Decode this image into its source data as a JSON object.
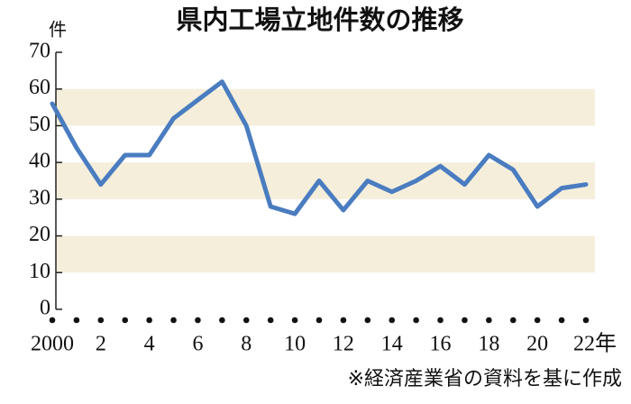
{
  "chart_data": {
    "type": "line",
    "title": "県内工場立地件数の推移",
    "y_unit": "件",
    "source": "※経済産業省の資料を基に作成",
    "categories": [
      "2000",
      null,
      "2",
      null,
      "4",
      null,
      "6",
      null,
      "8",
      null,
      "10",
      null,
      "12",
      null,
      "14",
      null,
      "16",
      null,
      "18",
      null,
      "20",
      null,
      "22年"
    ],
    "values": [
      56,
      44,
      34,
      42,
      42,
      52,
      57,
      62,
      50,
      28,
      26,
      35,
      27,
      35,
      32,
      35,
      39,
      34,
      42,
      38,
      28,
      33,
      34
    ],
    "color": "#4a7cc0",
    "band_color": "#f4eedb",
    "ylim": [
      0,
      70
    ],
    "yticks": [
      0,
      10,
      20,
      30,
      40,
      50,
      60,
      70
    ]
  }
}
